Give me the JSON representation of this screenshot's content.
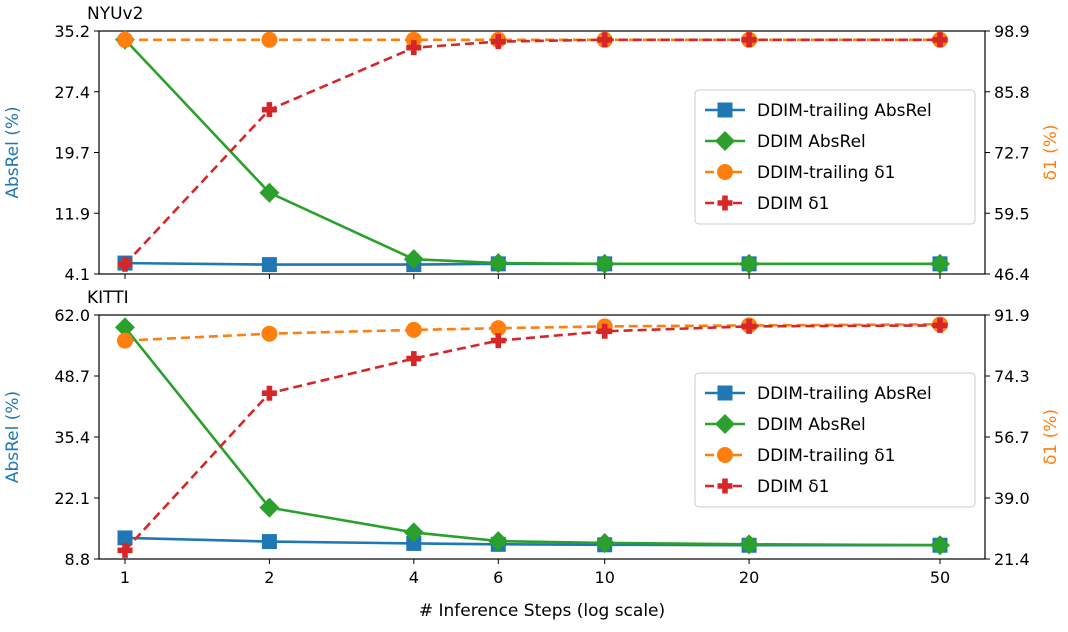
{
  "figure": {
    "xlabel": "# Inference Steps (log scale)",
    "x_scale": "log",
    "x_ticks": [
      1,
      2,
      4,
      6,
      10,
      20,
      50
    ],
    "x_tick_labels": [
      "1",
      "2",
      "4",
      "6",
      "10",
      "20",
      "50"
    ]
  },
  "colors": {
    "blue": "#1f77b4",
    "green": "#2ca02c",
    "orange": "#ff7f0e",
    "red": "#d62728"
  },
  "chart_data": [
    {
      "type": "line",
      "title": "NYUv2",
      "xlabel": "# Inference Steps (log scale)",
      "ylabel_left": "AbsRel (%)",
      "ylabel_right": "δ1 (%)",
      "x": [
        1,
        2,
        4,
        6,
        10,
        20,
        50
      ],
      "ylim_left": [
        4.1,
        35.2
      ],
      "ylim_right": [
        46.4,
        98.9
      ],
      "yticks_left": [
        "4.1",
        "11.9",
        "19.7",
        "27.4",
        "35.2"
      ],
      "yticks_right": [
        "46.4",
        "59.5",
        "72.7",
        "85.8",
        "98.9"
      ],
      "grid": false,
      "legend_position": "center-right",
      "series": [
        {
          "name": "DDIM-trailing AbsRel",
          "axis": "left",
          "color": "#1f77b4",
          "dash": "solid",
          "marker": "square",
          "values": [
            5.5,
            5.3,
            5.3,
            5.4,
            5.4,
            5.4,
            5.4
          ]
        },
        {
          "name": "DDIM AbsRel",
          "axis": "left",
          "color": "#2ca02c",
          "dash": "solid",
          "marker": "diamond",
          "values": [
            34.1,
            14.5,
            6.0,
            5.5,
            5.4,
            5.4,
            5.4
          ]
        },
        {
          "name": "DDIM-trailing δ1",
          "axis": "right",
          "color": "#ff7f0e",
          "dash": "dashed",
          "marker": "circle",
          "values": [
            97.0,
            97.0,
            97.0,
            97.0,
            97.0,
            97.0,
            97.0
          ]
        },
        {
          "name": "DDIM δ1",
          "axis": "right",
          "color": "#d62728",
          "dash": "dashed",
          "marker": "plus",
          "values": [
            48.5,
            81.9,
            95.3,
            96.6,
            97.0,
            97.0,
            97.0
          ]
        }
      ]
    },
    {
      "type": "line",
      "title": "KITTI",
      "xlabel": "# Inference Steps (log scale)",
      "ylabel_left": "AbsRel (%)",
      "ylabel_right": "δ1 (%)",
      "x": [
        1,
        2,
        4,
        6,
        10,
        20,
        50
      ],
      "ylim_left": [
        8.8,
        62.0
      ],
      "ylim_right": [
        21.4,
        91.9
      ],
      "yticks_left": [
        "8.8",
        "22.1",
        "35.4",
        "48.7",
        "62.0"
      ],
      "yticks_right": [
        "21.4",
        "39.0",
        "56.7",
        "74.3",
        "91.9"
      ],
      "grid": false,
      "legend_position": "center-right",
      "series": [
        {
          "name": "DDIM-trailing AbsRel",
          "axis": "left",
          "color": "#1f77b4",
          "dash": "solid",
          "marker": "square",
          "values": [
            13.4,
            12.6,
            12.2,
            12.0,
            11.9,
            11.8,
            11.8
          ]
        },
        {
          "name": "DDIM AbsRel",
          "axis": "left",
          "color": "#2ca02c",
          "dash": "solid",
          "marker": "diamond",
          "values": [
            59.3,
            20.0,
            14.6,
            12.7,
            12.3,
            12.0,
            11.8
          ]
        },
        {
          "name": "DDIM-trailing δ1",
          "axis": "right",
          "color": "#ff7f0e",
          "dash": "dashed",
          "marker": "circle",
          "values": [
            84.5,
            86.5,
            87.6,
            88.1,
            88.6,
            88.9,
            89.2
          ]
        },
        {
          "name": "DDIM δ1",
          "axis": "right",
          "color": "#d62728",
          "dash": "dashed",
          "marker": "plus",
          "values": [
            23.9,
            69.3,
            79.3,
            84.5,
            87.2,
            88.6,
            88.9
          ]
        }
      ]
    }
  ]
}
